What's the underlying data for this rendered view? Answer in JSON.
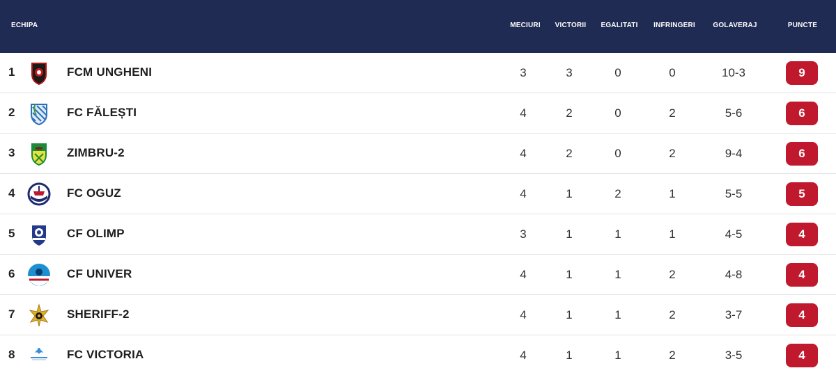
{
  "header": {
    "team": "ECHIPA",
    "played": "MECIURI",
    "wins": "VICTORII",
    "draws": "EGALITATI",
    "losses": "INFRINGERI",
    "goals": "GOLAVERAJ",
    "points": "PUNCTE"
  },
  "colors": {
    "header_bg": "#1f2b52",
    "points_badge": "#c0182d"
  },
  "rows": [
    {
      "rank": "1",
      "team": "FCM UNGHENI",
      "crest": "fcm-ungheni-crest-icon",
      "played": "3",
      "wins": "3",
      "draws": "0",
      "losses": "0",
      "goals": "10-3",
      "points": "9"
    },
    {
      "rank": "2",
      "team": "FC FĂLEȘTI",
      "crest": "fc-falesti-crest-icon",
      "played": "4",
      "wins": "2",
      "draws": "0",
      "losses": "2",
      "goals": "5-6",
      "points": "6"
    },
    {
      "rank": "3",
      "team": "ZIMBRU-2",
      "crest": "zimbru-crest-icon",
      "played": "4",
      "wins": "2",
      "draws": "0",
      "losses": "2",
      "goals": "9-4",
      "points": "6"
    },
    {
      "rank": "4",
      "team": "FC OGUZ",
      "crest": "fc-oguz-crest-icon",
      "played": "4",
      "wins": "1",
      "draws": "2",
      "losses": "1",
      "goals": "5-5",
      "points": "5"
    },
    {
      "rank": "5",
      "team": "CF OLIMP",
      "crest": "cf-olimp-crest-icon",
      "played": "3",
      "wins": "1",
      "draws": "1",
      "losses": "1",
      "goals": "4-5",
      "points": "4"
    },
    {
      "rank": "6",
      "team": "CF UNIVER",
      "crest": "cf-univer-crest-icon",
      "played": "4",
      "wins": "1",
      "draws": "1",
      "losses": "2",
      "goals": "4-8",
      "points": "4"
    },
    {
      "rank": "7",
      "team": "SHERIFF-2",
      "crest": "sheriff-crest-icon",
      "played": "4",
      "wins": "1",
      "draws": "1",
      "losses": "2",
      "goals": "3-7",
      "points": "4"
    },
    {
      "rank": "8",
      "team": "FC VICTORIA",
      "crest": "fc-victoria-crest-icon",
      "played": "4",
      "wins": "1",
      "draws": "1",
      "losses": "2",
      "goals": "3-5",
      "points": "4"
    }
  ]
}
